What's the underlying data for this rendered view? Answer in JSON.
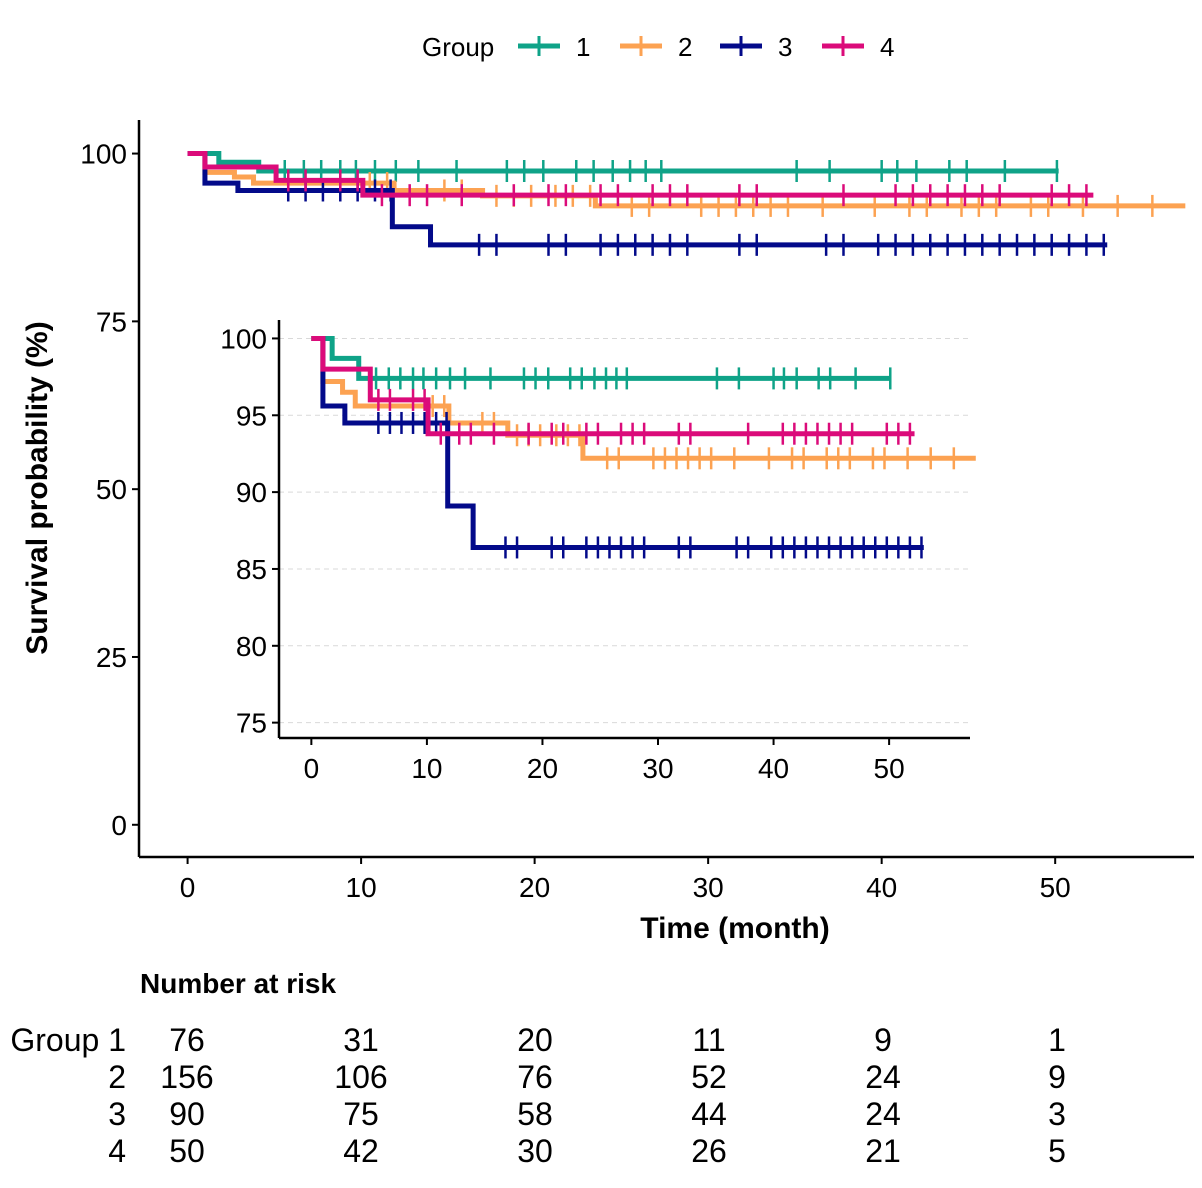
{
  "chart_data": {
    "type": "line",
    "subtype": "kaplan-meier step",
    "legend": {
      "title": "Group",
      "placement": "top",
      "entries": [
        "1",
        "2",
        "3",
        "4"
      ]
    },
    "colors": {
      "1": "#0fa388",
      "2": "#fca252",
      "3": "#030a8a",
      "4": "#db0b7a"
    },
    "main": {
      "xlabel": "Time (month)",
      "ylabel": "Survival probability (%)",
      "xticks": [
        "0",
        "10",
        "20",
        "30",
        "40",
        "50"
      ],
      "yticks": [
        "0",
        "25",
        "50",
        "75",
        "100"
      ],
      "xlim": [
        -2.8,
        58
      ],
      "ylim": [
        -4.8,
        105
      ],
      "grid": false
    },
    "inset": {
      "xticks": [
        "0",
        "10",
        "20",
        "30",
        "40",
        "50"
      ],
      "yticks": [
        "75",
        "80",
        "85",
        "90",
        "95",
        "100"
      ],
      "xlim": [
        -2.8,
        57
      ],
      "ylim": [
        74,
        101.2
      ],
      "grid": "horizontal dashed"
    },
    "series": [
      {
        "name": "1",
        "steps": [
          [
            0,
            100
          ],
          [
            1.8,
            98.7
          ],
          [
            4.1,
            97.4
          ]
        ],
        "end": 50.2,
        "censor": [
          5.6,
          6.7,
          7.7,
          8.8,
          9.7,
          10.8,
          12,
          13.3,
          15.5,
          18.4,
          19.4,
          20.5,
          22.4,
          23.4,
          24.5,
          25.5,
          26.4,
          27.3,
          35.1,
          37,
          40,
          40.9,
          42,
          43.9,
          44.9,
          47.1,
          50.1
        ]
      },
      {
        "name": "2",
        "steps": [
          [
            0,
            100
          ],
          [
            1.0,
            97.2
          ],
          [
            2.7,
            96.5
          ],
          [
            3.8,
            95.6
          ],
          [
            11.9,
            94.5
          ],
          [
            17.0,
            93.7
          ],
          [
            23.5,
            92.2
          ]
        ],
        "end": 57.5,
        "censor": [
          10.5,
          11.5,
          14.8,
          15.8,
          17.8,
          18.8,
          19.8,
          21.2,
          22.2,
          23.2,
          25.6,
          26.6,
          29.6,
          30.6,
          31.6,
          32.6,
          33.6,
          34.6,
          36.6,
          39.6,
          41.6,
          42.6,
          44.6,
          45.6,
          46.6,
          48.6,
          49.6,
          51.6,
          53.6,
          55.6
        ]
      },
      {
        "name": "3",
        "steps": [
          [
            0,
            100
          ],
          [
            1.0,
            95.6
          ],
          [
            2.9,
            94.5
          ],
          [
            11.8,
            89.1
          ],
          [
            14.0,
            86.4
          ]
        ],
        "end": 53.0,
        "censor": [
          5.8,
          6.8,
          7.8,
          8.8,
          9.8,
          10.8,
          11.7,
          16.8,
          17.8,
          20.8,
          21.8,
          23.8,
          24.8,
          25.8,
          26.8,
          27.8,
          28.8,
          31.8,
          32.8,
          36.8,
          37.8,
          39.8,
          40.8,
          41.8,
          42.8,
          43.8,
          44.8,
          45.8,
          46.8,
          47.8,
          48.8,
          49.8,
          50.8,
          51.8,
          52.8
        ]
      },
      {
        "name": "4",
        "steps": [
          [
            0,
            100
          ],
          [
            1.0,
            98.0
          ],
          [
            5.1,
            96.0
          ],
          [
            10.1,
            93.8
          ]
        ],
        "end": 52.2,
        "censor": [
          5.8,
          6.8,
          8.8,
          9.8,
          11.2,
          12.8,
          13.8,
          15.8,
          18.8,
          20.8,
          21.8,
          23.8,
          24.8,
          26.8,
          27.8,
          28.8,
          31.8,
          32.8,
          37.8,
          40.8,
          41.8,
          42.8,
          43.8,
          44.8,
          45.8,
          46.8,
          49.8,
          50.8,
          51.8
        ]
      }
    ]
  },
  "risk_table": {
    "title": "Number at risk",
    "times": [
      0,
      10,
      20,
      30,
      40,
      50
    ],
    "rows": [
      {
        "label": "Group 1",
        "values": [
          "76",
          "31",
          "20",
          "11",
          "9",
          "1"
        ]
      },
      {
        "label": "2",
        "values": [
          "156",
          "106",
          "76",
          "52",
          "24",
          "9"
        ]
      },
      {
        "label": "3",
        "values": [
          "90",
          "75",
          "58",
          "44",
          "24",
          "3"
        ]
      },
      {
        "label": "4",
        "values": [
          "50",
          "42",
          "30",
          "26",
          "21",
          "5"
        ]
      }
    ]
  }
}
